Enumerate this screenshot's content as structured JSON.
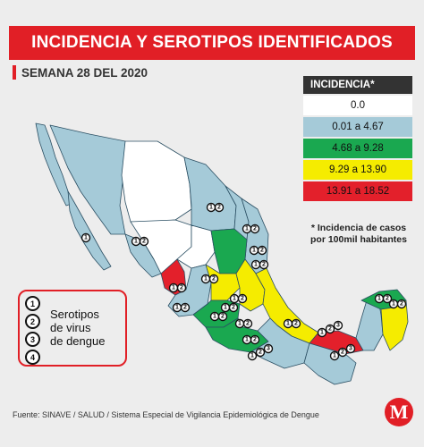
{
  "title": "INCIDENCIA Y SEROTIPOS IDENTIFICADOS",
  "week": "SEMANA 28 DEL 2020",
  "legend": {
    "heading": "INCIDENCIA*",
    "bins": [
      {
        "label": "0.0",
        "color": "#ffffff"
      },
      {
        "label": "0.01 a 4.67",
        "color": "#a5cad8"
      },
      {
        "label": "4.68 a 9.28",
        "color": "#1aa850"
      },
      {
        "label": "9.29 a 13.90",
        "color": "#f5ec00"
      },
      {
        "label": "13.91 a 18.52",
        "color": "#e3202b"
      }
    ],
    "note": "Incidencia de casos por 100mil habitantes",
    "note_mark": "*"
  },
  "serotypes": {
    "numbers": [
      "1",
      "2",
      "3",
      "4"
    ],
    "label_lines": [
      "Serotipos",
      "de virus",
      "de dengue"
    ]
  },
  "source": "Fuente: SINAVE / SALUD / Sistema Especial de Vigilancia Epidemiológica de Dengue",
  "logo_letter": "M",
  "colors": {
    "accent": "#e11f26",
    "zero": "#ffffff",
    "low": "#a5cad8",
    "mid": "#1aa850",
    "high": "#f5ec00",
    "top": "#e3202b",
    "border": "#2b4f63"
  },
  "map_regions": [
    {
      "name": "baja-california",
      "bin": "low"
    },
    {
      "name": "baja-california-sur",
      "bin": "low"
    },
    {
      "name": "sonora",
      "bin": "low"
    },
    {
      "name": "chihuahua",
      "bin": "zero"
    },
    {
      "name": "coahuila",
      "bin": "low"
    },
    {
      "name": "nuevo-leon",
      "bin": "low"
    },
    {
      "name": "tamaulipas",
      "bin": "low"
    },
    {
      "name": "sinaloa",
      "bin": "low"
    },
    {
      "name": "durango",
      "bin": "zero"
    },
    {
      "name": "zacatecas",
      "bin": "zero"
    },
    {
      "name": "san-luis-potosi",
      "bin": "mid"
    },
    {
      "name": "nayarit",
      "bin": "top"
    },
    {
      "name": "jalisco",
      "bin": "low"
    },
    {
      "name": "guanajuato",
      "bin": "high"
    },
    {
      "name": "queretaro-hidalgo",
      "bin": "high"
    },
    {
      "name": "michoacan",
      "bin": "mid"
    },
    {
      "name": "guerrero",
      "bin": "mid"
    },
    {
      "name": "veracruz",
      "bin": "high"
    },
    {
      "name": "oaxaca",
      "bin": "low"
    },
    {
      "name": "tabasco",
      "bin": "top"
    },
    {
      "name": "chiapas",
      "bin": "low"
    },
    {
      "name": "campeche",
      "bin": "low"
    },
    {
      "name": "yucatan",
      "bin": "mid"
    },
    {
      "name": "quintana-roo",
      "bin": "high"
    }
  ],
  "badge_groups": [
    {
      "region": "chihuahua",
      "labels": [
        "1",
        "2"
      ]
    },
    {
      "region": "coahuila",
      "labels": [
        "1",
        "2"
      ]
    },
    {
      "region": "baja-california-sur",
      "labels": [
        "1"
      ]
    },
    {
      "region": "sinaloa",
      "labels": [
        "1",
        "2"
      ]
    },
    {
      "region": "nuevo-leon",
      "labels": [
        "1",
        "2"
      ]
    },
    {
      "region": "tamaulipas",
      "labels": [
        "1",
        "2"
      ]
    },
    {
      "region": "nayarit",
      "labels": [
        "1",
        "2"
      ]
    },
    {
      "region": "zacatecas",
      "labels": [
        "1",
        "2"
      ]
    },
    {
      "region": "guanajuato",
      "labels": [
        "1",
        "2"
      ]
    },
    {
      "region": "san-luis-potosi",
      "labels": [
        "1",
        "2"
      ]
    },
    {
      "region": "jalisco",
      "labels": [
        "1",
        "2"
      ]
    },
    {
      "region": "michoacan",
      "labels": [
        "1",
        "2"
      ]
    },
    {
      "region": "edomex",
      "labels": [
        "1",
        "2"
      ]
    },
    {
      "region": "guerrero",
      "labels": [
        "1",
        "2"
      ]
    },
    {
      "region": "veracruz",
      "labels": [
        "1",
        "2"
      ]
    },
    {
      "region": "tabasco",
      "labels": [
        "1",
        "2",
        "3"
      ]
    },
    {
      "region": "oaxaca",
      "labels": [
        "1",
        "2",
        "3"
      ]
    },
    {
      "region": "chiapas",
      "labels": [
        "1",
        "2",
        "3"
      ]
    },
    {
      "region": "yucatan",
      "labels": [
        "1",
        "2"
      ]
    },
    {
      "region": "quintana-roo",
      "labels": [
        "1",
        "2"
      ]
    }
  ]
}
